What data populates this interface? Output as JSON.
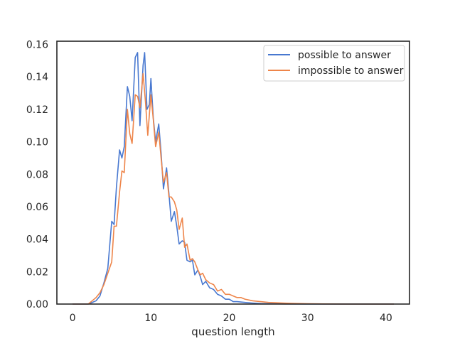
{
  "chart_data": {
    "type": "line",
    "title": "",
    "xlabel": "question length",
    "ylabel": "",
    "xlim": [
      -2,
      43
    ],
    "ylim": [
      0,
      0.162
    ],
    "x_ticks": [
      0,
      10,
      20,
      30,
      40
    ],
    "y_ticks": [
      0.0,
      0.02,
      0.04,
      0.06,
      0.08,
      0.1,
      0.12,
      0.14,
      0.16
    ],
    "x_tick_labels": [
      "0",
      "10",
      "20",
      "30",
      "40"
    ],
    "y_tick_labels": [
      "0.00",
      "0.02",
      "0.04",
      "0.06",
      "0.08",
      "0.10",
      "0.12",
      "0.14",
      "0.16"
    ],
    "grid": false,
    "legend_position": "top-right",
    "series": [
      {
        "name": "possible to answer",
        "color": "#4878d0",
        "points": [
          [
            0,
            0
          ],
          [
            1,
            0
          ],
          [
            2,
            0
          ],
          [
            2.5,
            0.001
          ],
          [
            3,
            0.002
          ],
          [
            3.5,
            0.005
          ],
          [
            4,
            0.013
          ],
          [
            4.5,
            0.022
          ],
          [
            5,
            0.051
          ],
          [
            5.3,
            0.049
          ],
          [
            5.6,
            0.072
          ],
          [
            6,
            0.095
          ],
          [
            6.3,
            0.09
          ],
          [
            6.6,
            0.097
          ],
          [
            7,
            0.134
          ],
          [
            7.3,
            0.128
          ],
          [
            7.6,
            0.113
          ],
          [
            8,
            0.152
          ],
          [
            8.3,
            0.155
          ],
          [
            8.6,
            0.11
          ],
          [
            9,
            0.147
          ],
          [
            9.2,
            0.155
          ],
          [
            9.5,
            0.12
          ],
          [
            9.8,
            0.123
          ],
          [
            10,
            0.139
          ],
          [
            10.3,
            0.115
          ],
          [
            10.6,
            0.1
          ],
          [
            11,
            0.111
          ],
          [
            11.3,
            0.093
          ],
          [
            11.6,
            0.071
          ],
          [
            12,
            0.084
          ],
          [
            12.3,
            0.068
          ],
          [
            12.6,
            0.051
          ],
          [
            13,
            0.057
          ],
          [
            13.3,
            0.048
          ],
          [
            13.6,
            0.037
          ],
          [
            14,
            0.039
          ],
          [
            14.3,
            0.038
          ],
          [
            14.6,
            0.027
          ],
          [
            15,
            0.026
          ],
          [
            15.3,
            0.027
          ],
          [
            15.6,
            0.018
          ],
          [
            16,
            0.021
          ],
          [
            16.3,
            0.017
          ],
          [
            16.6,
            0.012
          ],
          [
            17,
            0.014
          ],
          [
            17.5,
            0.01
          ],
          [
            18,
            0.009
          ],
          [
            18.5,
            0.006
          ],
          [
            19,
            0.005
          ],
          [
            19.5,
            0.003
          ],
          [
            20,
            0.003
          ],
          [
            20.5,
            0.0015
          ],
          [
            21,
            0.0015
          ],
          [
            22,
            0.001
          ],
          [
            23,
            0.0006
          ],
          [
            24,
            0.0003
          ],
          [
            25,
            0.0002
          ],
          [
            27,
            0.0001
          ],
          [
            30,
            0
          ],
          [
            35,
            0
          ],
          [
            40,
            0
          ],
          [
            41,
            0
          ]
        ]
      },
      {
        "name": "impossible to answer",
        "color": "#ee854a",
        "points": [
          [
            0,
            0
          ],
          [
            1,
            0
          ],
          [
            2,
            0
          ],
          [
            2.5,
            0.002
          ],
          [
            3,
            0.004
          ],
          [
            3.5,
            0.007
          ],
          [
            4,
            0.012
          ],
          [
            4.5,
            0.019
          ],
          [
            5,
            0.026
          ],
          [
            5.3,
            0.048
          ],
          [
            5.6,
            0.048
          ],
          [
            6,
            0.069
          ],
          [
            6.3,
            0.082
          ],
          [
            6.6,
            0.081
          ],
          [
            7,
            0.12
          ],
          [
            7.3,
            0.105
          ],
          [
            7.6,
            0.099
          ],
          [
            8,
            0.129
          ],
          [
            8.3,
            0.128
          ],
          [
            8.6,
            0.121
          ],
          [
            9,
            0.142
          ],
          [
            9.3,
            0.125
          ],
          [
            9.6,
            0.104
          ],
          [
            10,
            0.129
          ],
          [
            10.3,
            0.114
          ],
          [
            10.6,
            0.097
          ],
          [
            11,
            0.106
          ],
          [
            11.3,
            0.09
          ],
          [
            11.6,
            0.075
          ],
          [
            12,
            0.081
          ],
          [
            12.3,
            0.066
          ],
          [
            12.6,
            0.066
          ],
          [
            13,
            0.063
          ],
          [
            13.3,
            0.058
          ],
          [
            13.6,
            0.046
          ],
          [
            14,
            0.053
          ],
          [
            14.3,
            0.035
          ],
          [
            14.6,
            0.037
          ],
          [
            15,
            0.027
          ],
          [
            15.3,
            0.028
          ],
          [
            15.6,
            0.026
          ],
          [
            16,
            0.021
          ],
          [
            16.3,
            0.018
          ],
          [
            16.6,
            0.019
          ],
          [
            17,
            0.015
          ],
          [
            17.5,
            0.013
          ],
          [
            18,
            0.012
          ],
          [
            18.5,
            0.008
          ],
          [
            19,
            0.009
          ],
          [
            19.5,
            0.006
          ],
          [
            20,
            0.006
          ],
          [
            20.5,
            0.005
          ],
          [
            21,
            0.004
          ],
          [
            21.5,
            0.004
          ],
          [
            22,
            0.003
          ],
          [
            23,
            0.002
          ],
          [
            24,
            0.0015
          ],
          [
            25,
            0.001
          ],
          [
            26,
            0.0008
          ],
          [
            27,
            0.0006
          ],
          [
            28,
            0.0004
          ],
          [
            30,
            0.0002
          ],
          [
            32,
            0.0001
          ],
          [
            35,
            0
          ],
          [
            40,
            0
          ],
          [
            41,
            0
          ]
        ]
      }
    ]
  }
}
